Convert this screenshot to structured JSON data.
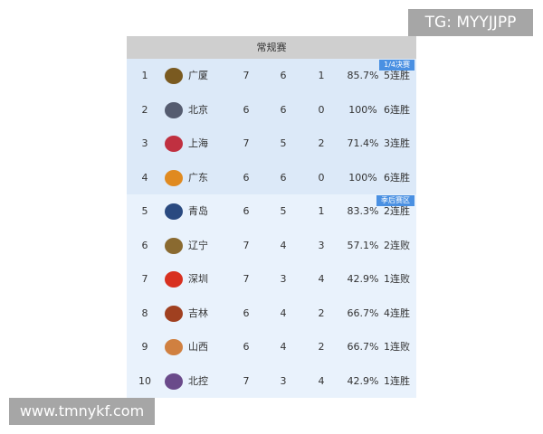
{
  "header": {
    "title": "常规赛"
  },
  "badges": {
    "quarterfinal": "1/4决赛",
    "playoff_zone": "季后赛区"
  },
  "rows": [
    {
      "rank": "1",
      "team": "广厦",
      "games": "7",
      "wins": "6",
      "losses": "1",
      "pct": "85.7%",
      "streak": "5连胜",
      "logo_color": "#7a5a20"
    },
    {
      "rank": "2",
      "team": "北京",
      "games": "6",
      "wins": "6",
      "losses": "0",
      "pct": "100%",
      "streak": "6连胜",
      "logo_color": "#555c70"
    },
    {
      "rank": "3",
      "team": "上海",
      "games": "7",
      "wins": "5",
      "losses": "2",
      "pct": "71.4%",
      "streak": "3连胜",
      "logo_color": "#c03040"
    },
    {
      "rank": "4",
      "team": "广东",
      "games": "6",
      "wins": "6",
      "losses": "0",
      "pct": "100%",
      "streak": "6连胜",
      "logo_color": "#e08a20"
    },
    {
      "rank": "5",
      "team": "青岛",
      "games": "6",
      "wins": "5",
      "losses": "1",
      "pct": "83.3%",
      "streak": "2连胜",
      "logo_color": "#2a4a80"
    },
    {
      "rank": "6",
      "team": "辽宁",
      "games": "7",
      "wins": "4",
      "losses": "3",
      "pct": "57.1%",
      "streak": "2连败",
      "logo_color": "#8a6a30"
    },
    {
      "rank": "7",
      "team": "深圳",
      "games": "7",
      "wins": "3",
      "losses": "4",
      "pct": "42.9%",
      "streak": "1连败",
      "logo_color": "#d83020"
    },
    {
      "rank": "8",
      "team": "吉林",
      "games": "6",
      "wins": "4",
      "losses": "2",
      "pct": "66.7%",
      "streak": "4连胜",
      "logo_color": "#a04020"
    },
    {
      "rank": "9",
      "team": "山西",
      "games": "6",
      "wins": "4",
      "losses": "2",
      "pct": "66.7%",
      "streak": "1连败",
      "logo_color": "#d08040"
    },
    {
      "rank": "10",
      "team": "北控",
      "games": "7",
      "wins": "3",
      "losses": "4",
      "pct": "42.9%",
      "streak": "1连胜",
      "logo_color": "#6a4a8a"
    }
  ],
  "watermarks": {
    "tg": "TG: MYYJJPP",
    "site": "www.tmnykf.com"
  }
}
